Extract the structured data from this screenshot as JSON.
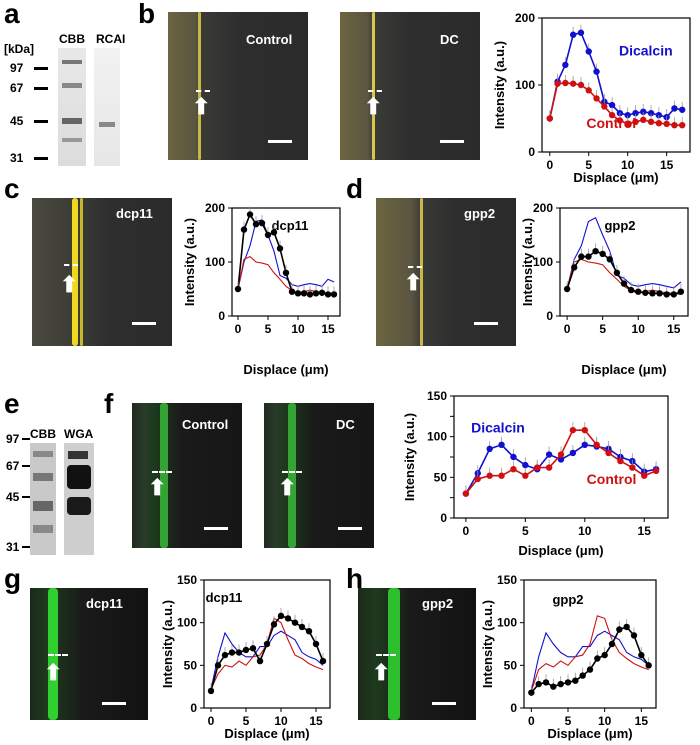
{
  "panels": {
    "a": {
      "letter": "a",
      "lanes": [
        "CBB",
        "RCAI"
      ],
      "unit": "[kDa]",
      "markers": [
        "97",
        "67",
        "45",
        "31"
      ]
    },
    "b": {
      "letter": "b",
      "image_labels": [
        "Control",
        "DC"
      ]
    },
    "c": {
      "letter": "c",
      "image_label": "dcp11"
    },
    "d": {
      "letter": "d",
      "image_label": "gpp2"
    },
    "e": {
      "letter": "e",
      "lanes": [
        "CBB",
        "WGA"
      ],
      "markers": [
        "97",
        "67",
        "45",
        "31"
      ]
    },
    "f": {
      "letter": "f",
      "image_labels": [
        "Control",
        "DC"
      ]
    },
    "g": {
      "letter": "g",
      "image_label": "dcp11"
    },
    "h": {
      "letter": "h",
      "image_label": "gpp2"
    }
  },
  "colors": {
    "dicalcin": "#1010d0",
    "control": "#d01010",
    "mutant": "#000000",
    "yellow": "#e8d040",
    "green": "#30d030"
  },
  "chart_data": [
    {
      "id": "b",
      "type": "line",
      "xlabel": "Displace (μm)",
      "ylabel": "Intensity (a.u.)",
      "xlim": [
        -1,
        18
      ],
      "ylim": [
        0,
        200
      ],
      "xticks": [
        0,
        5,
        10,
        15
      ],
      "yticks": [
        0,
        100,
        200
      ],
      "series": [
        {
          "name": "Dicalcin",
          "color": "#1010d0",
          "x": [
            0,
            1,
            2,
            3,
            4,
            5,
            6,
            7,
            8,
            9,
            10,
            11,
            12,
            13,
            14,
            15,
            16,
            17
          ],
          "y": [
            50,
            105,
            130,
            175,
            178,
            150,
            120,
            75,
            70,
            58,
            55,
            58,
            60,
            58,
            55,
            52,
            65,
            63
          ]
        },
        {
          "name": "Control",
          "color": "#d01010",
          "x": [
            0,
            1,
            2,
            3,
            4,
            5,
            6,
            7,
            8,
            9,
            10,
            11,
            12,
            13,
            14,
            15,
            16,
            17
          ],
          "y": [
            50,
            102,
            103,
            102,
            100,
            92,
            80,
            68,
            55,
            47,
            42,
            45,
            48,
            45,
            43,
            42,
            40,
            40
          ]
        }
      ],
      "labels": [
        "Dicalcin",
        "Control"
      ]
    },
    {
      "id": "c",
      "type": "line",
      "xlabel": "Displace (μm)",
      "ylabel": "Intensity (a.u.)",
      "xlim": [
        -1,
        17
      ],
      "ylim": [
        0,
        200
      ],
      "xticks": [
        0,
        5,
        10,
        15
      ],
      "yticks": [
        0,
        100,
        200
      ],
      "title": "dcp11",
      "series": [
        {
          "color": "#1010d0",
          "x": [
            0,
            1,
            2,
            3,
            4,
            5,
            6,
            7,
            8,
            9,
            10,
            11,
            12,
            13,
            14,
            15,
            16
          ],
          "y": [
            50,
            100,
            130,
            175,
            178,
            150,
            120,
            75,
            70,
            58,
            55,
            58,
            60,
            58,
            55,
            68,
            63
          ]
        },
        {
          "color": "#d01010",
          "x": [
            0,
            1,
            2,
            3,
            4,
            5,
            6,
            7,
            8,
            9,
            10,
            11,
            12,
            13,
            14,
            15,
            16
          ],
          "y": [
            50,
            105,
            110,
            100,
            98,
            95,
            80,
            68,
            55,
            47,
            42,
            45,
            48,
            45,
            43,
            42,
            40
          ]
        },
        {
          "color": "#000000",
          "x": [
            0,
            1,
            2,
            3,
            4,
            5,
            6,
            7,
            8,
            9,
            10,
            11,
            12,
            13,
            14,
            15,
            16
          ],
          "y": [
            50,
            160,
            188,
            170,
            172,
            150,
            155,
            125,
            80,
            45,
            42,
            42,
            40,
            42,
            43,
            40,
            40
          ]
        }
      ]
    },
    {
      "id": "d",
      "type": "line",
      "xlabel": "Displace (μm)",
      "ylabel": "Intensity (a.u.)",
      "xlim": [
        -1,
        17
      ],
      "ylim": [
        0,
        200
      ],
      "xticks": [
        0,
        5,
        10,
        15
      ],
      "yticks": [
        0,
        100,
        200
      ],
      "title": "gpp2",
      "series": [
        {
          "color": "#1010d0",
          "x": [
            0,
            1,
            2,
            3,
            4,
            5,
            6,
            7,
            8,
            9,
            10,
            11,
            12,
            13,
            14,
            15,
            16
          ],
          "y": [
            50,
            105,
            130,
            175,
            182,
            150,
            120,
            75,
            70,
            58,
            55,
            58,
            60,
            58,
            55,
            52,
            63
          ]
        },
        {
          "color": "#d01010",
          "x": [
            0,
            1,
            2,
            3,
            4,
            5,
            6,
            7,
            8,
            9,
            10,
            11,
            12,
            13,
            14,
            15,
            16
          ],
          "y": [
            50,
            100,
            105,
            100,
            98,
            95,
            80,
            68,
            55,
            47,
            42,
            45,
            48,
            45,
            43,
            42,
            40
          ]
        },
        {
          "color": "#000000",
          "x": [
            0,
            1,
            2,
            3,
            4,
            5,
            6,
            7,
            8,
            9,
            10,
            11,
            12,
            13,
            14,
            15,
            16
          ],
          "y": [
            50,
            90,
            110,
            110,
            120,
            115,
            105,
            80,
            60,
            48,
            45,
            43,
            42,
            42,
            40,
            40,
            45
          ]
        }
      ]
    },
    {
      "id": "f",
      "type": "line",
      "xlabel": "Displace (μm)",
      "ylabel": "Intensity (a.u.)",
      "xlim": [
        -1,
        17
      ],
      "ylim": [
        0,
        150
      ],
      "xticks": [
        0,
        5,
        10,
        15
      ],
      "yticks": [
        0,
        25,
        50,
        75,
        100,
        125,
        150
      ],
      "yticklabels": [
        "0",
        "",
        "50",
        "",
        "100",
        "",
        "150"
      ],
      "series": [
        {
          "name": "Dicalcin",
          "color": "#1010d0",
          "x": [
            0,
            1,
            2,
            3,
            4,
            5,
            6,
            7,
            8,
            9,
            10,
            11,
            12,
            13,
            14,
            15,
            16
          ],
          "y": [
            30,
            55,
            85,
            90,
            75,
            65,
            60,
            78,
            72,
            80,
            90,
            88,
            85,
            75,
            70,
            57,
            60
          ]
        },
        {
          "name": "Control",
          "color": "#d01010",
          "x": [
            0,
            1,
            2,
            3,
            4,
            5,
            6,
            7,
            8,
            9,
            10,
            11,
            12,
            13,
            14,
            15,
            16
          ],
          "y": [
            30,
            48,
            52,
            52,
            60,
            52,
            62,
            62,
            78,
            108,
            108,
            90,
            80,
            70,
            62,
            52,
            58
          ]
        }
      ],
      "labels": [
        "Dicalcin",
        "Control"
      ]
    },
    {
      "id": "g",
      "type": "line",
      "xlabel": "Displace (μm)",
      "ylabel": "Intensity (a.u.)",
      "xlim": [
        -1,
        17
      ],
      "ylim": [
        0,
        150
      ],
      "xticks": [
        0,
        5,
        10,
        15
      ],
      "yticks": [
        0,
        50,
        100,
        150
      ],
      "title": "dcp11",
      "series": [
        {
          "color": "#1010d0",
          "x": [
            0,
            1,
            2,
            3,
            4,
            5,
            6,
            7,
            8,
            9,
            10,
            11,
            12,
            13,
            14,
            15,
            16
          ],
          "y": [
            22,
            60,
            88,
            75,
            65,
            60,
            60,
            72,
            72,
            85,
            90,
            85,
            80,
            65,
            60,
            57,
            50
          ]
        },
        {
          "color": "#d01010",
          "x": [
            0,
            1,
            2,
            3,
            4,
            5,
            6,
            7,
            8,
            9,
            10,
            11,
            12,
            13,
            14,
            15,
            16
          ],
          "y": [
            22,
            40,
            50,
            48,
            55,
            50,
            60,
            62,
            75,
            105,
            100,
            80,
            62,
            58,
            52,
            48,
            45
          ]
        },
        {
          "color": "#000000",
          "x": [
            0,
            1,
            2,
            3,
            4,
            5,
            6,
            7,
            8,
            9,
            10,
            11,
            12,
            13,
            14,
            15,
            16
          ],
          "y": [
            20,
            50,
            62,
            65,
            65,
            68,
            70,
            55,
            75,
            98,
            108,
            105,
            100,
            95,
            90,
            75,
            55
          ]
        }
      ]
    },
    {
      "id": "h",
      "type": "line",
      "xlabel": "Displace (μm)",
      "ylabel": "Intensity (a.u.)",
      "xlim": [
        -1,
        17
      ],
      "ylim": [
        0,
        150
      ],
      "xticks": [
        0,
        5,
        10,
        15
      ],
      "yticks": [
        0,
        50,
        100,
        150
      ],
      "title": "gpp2",
      "series": [
        {
          "color": "#1010d0",
          "x": [
            0,
            1,
            2,
            3,
            4,
            5,
            6,
            7,
            8,
            9,
            10,
            11,
            12,
            13,
            14,
            15,
            16
          ],
          "y": [
            20,
            60,
            88,
            75,
            65,
            60,
            60,
            72,
            72,
            85,
            90,
            85,
            80,
            65,
            60,
            57,
            50
          ]
        },
        {
          "color": "#d01010",
          "x": [
            0,
            1,
            2,
            3,
            4,
            5,
            6,
            7,
            8,
            9,
            10,
            11,
            12,
            13,
            14,
            15,
            16
          ],
          "y": [
            20,
            45,
            52,
            48,
            55,
            50,
            60,
            62,
            75,
            108,
            105,
            80,
            65,
            58,
            52,
            48,
            45
          ]
        },
        {
          "color": "#000000",
          "x": [
            0,
            1,
            2,
            3,
            4,
            5,
            6,
            7,
            8,
            9,
            10,
            11,
            12,
            13,
            14,
            15,
            16
          ],
          "y": [
            18,
            28,
            30,
            25,
            28,
            30,
            32,
            38,
            45,
            58,
            62,
            75,
            92,
            95,
            85,
            62,
            50
          ]
        }
      ]
    }
  ]
}
